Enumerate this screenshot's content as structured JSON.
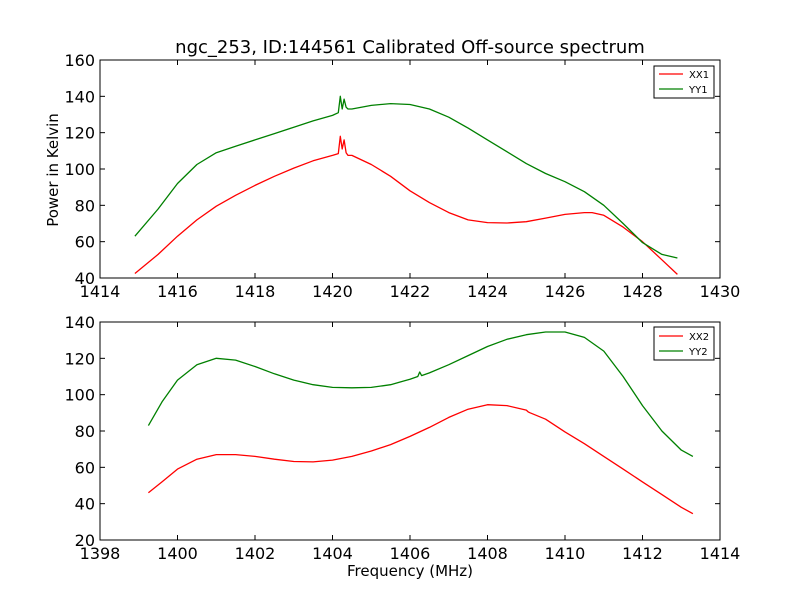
{
  "chart_data": [
    {
      "type": "line",
      "title": "ngc_253, ID:144561 Calibrated Off-source spectrum",
      "xlabel": "",
      "ylabel": "Power in Kelvin",
      "xlim": [
        1414,
        1430
      ],
      "ylim": [
        40,
        160
      ],
      "xticks": [
        1414,
        1416,
        1418,
        1420,
        1422,
        1424,
        1426,
        1428,
        1430
      ],
      "yticks": [
        40,
        60,
        80,
        100,
        120,
        140,
        160
      ],
      "legend_position": "top-right",
      "series": [
        {
          "name": "XX1",
          "color": "#ff0000",
          "x": [
            1414.9,
            1415.5,
            1416,
            1416.5,
            1417,
            1417.5,
            1418,
            1418.5,
            1419,
            1419.5,
            1420,
            1420.15,
            1420.2,
            1420.25,
            1420.3,
            1420.35,
            1420.4,
            1420.5,
            1421,
            1421.5,
            1422,
            1422.5,
            1423,
            1423.5,
            1424,
            1424.5,
            1425,
            1425.5,
            1426,
            1426.5,
            1426.7,
            1427,
            1427.5,
            1428,
            1428.5,
            1428.9
          ],
          "y": [
            42.5,
            53,
            63,
            72,
            79.5,
            85.5,
            91,
            96,
            100.5,
            104.5,
            107.5,
            108.5,
            118,
            111,
            116,
            109,
            107.5,
            107.5,
            102.5,
            96,
            88,
            81.5,
            76,
            72,
            70.5,
            70.3,
            71,
            73,
            75,
            76,
            76,
            74.5,
            68,
            60,
            50,
            42
          ]
        },
        {
          "name": "YY1",
          "color": "#008000",
          "x": [
            1414.9,
            1415.5,
            1416,
            1416.5,
            1417,
            1417.5,
            1418,
            1418.5,
            1419,
            1419.5,
            1420,
            1420.15,
            1420.2,
            1420.25,
            1420.3,
            1420.35,
            1420.4,
            1420.5,
            1421,
            1421.5,
            1422,
            1422.5,
            1423,
            1423.5,
            1424,
            1424.5,
            1425,
            1425.5,
            1426,
            1426.5,
            1427,
            1427.5,
            1428,
            1428.5,
            1428.9
          ],
          "y": [
            63,
            78,
            92,
            102.5,
            109,
            112.5,
            116,
            119.5,
            123,
            126.5,
            129.5,
            131,
            140,
            133,
            138.5,
            134,
            133,
            133,
            135,
            136,
            135.5,
            133,
            128.5,
            122.5,
            116,
            109.5,
            103,
            97.5,
            93,
            87.5,
            80,
            70,
            59.5,
            53,
            51
          ]
        }
      ]
    },
    {
      "type": "line",
      "title": "",
      "xlabel": "Frequency (MHz)",
      "ylabel": "",
      "xlim": [
        1398,
        1414
      ],
      "ylim": [
        20,
        140
      ],
      "xticks": [
        1398,
        1400,
        1402,
        1404,
        1406,
        1408,
        1410,
        1412,
        1414
      ],
      "yticks": [
        20,
        40,
        60,
        80,
        100,
        120,
        140
      ],
      "legend_position": "top-right",
      "series": [
        {
          "name": "XX2",
          "color": "#ff0000",
          "x": [
            1399.25,
            1399.6,
            1400,
            1400.5,
            1401,
            1401.5,
            1402,
            1402.5,
            1403,
            1403.5,
            1404,
            1404.5,
            1405,
            1405.5,
            1406,
            1406.5,
            1407,
            1407.5,
            1408,
            1408.5,
            1409,
            1409.05,
            1409.1,
            1409.5,
            1410,
            1410.5,
            1411,
            1411.5,
            1412,
            1412.5,
            1413,
            1413.3
          ],
          "y": [
            46,
            52,
            59,
            64.5,
            67,
            67,
            66,
            64.5,
            63.2,
            63,
            64,
            66,
            69,
            72.5,
            77,
            82,
            87.5,
            92,
            94.5,
            94,
            91.5,
            90.5,
            90,
            86.5,
            79.5,
            73,
            66,
            59,
            52,
            45,
            38,
            34.5
          ]
        },
        {
          "name": "YY2",
          "color": "#008000",
          "x": [
            1399.25,
            1399.6,
            1400,
            1400.5,
            1401,
            1401.5,
            1402,
            1402.5,
            1403,
            1403.5,
            1404,
            1404.5,
            1405,
            1405.5,
            1406,
            1406.2,
            1406.25,
            1406.3,
            1406.5,
            1407,
            1407.5,
            1408,
            1408.5,
            1409,
            1409.5,
            1410,
            1410.5,
            1411,
            1411.5,
            1412,
            1412.5,
            1413,
            1413.3
          ],
          "y": [
            83,
            96,
            108,
            116.5,
            120,
            119,
            115.5,
            111.5,
            108,
            105.5,
            104,
            103.8,
            104,
            105.5,
            108.5,
            110,
            112.5,
            110.5,
            112,
            116.5,
            121.5,
            126.5,
            130.5,
            133,
            134.5,
            134.5,
            131.5,
            124,
            110,
            94,
            80,
            69.5,
            66
          ]
        }
      ]
    }
  ]
}
